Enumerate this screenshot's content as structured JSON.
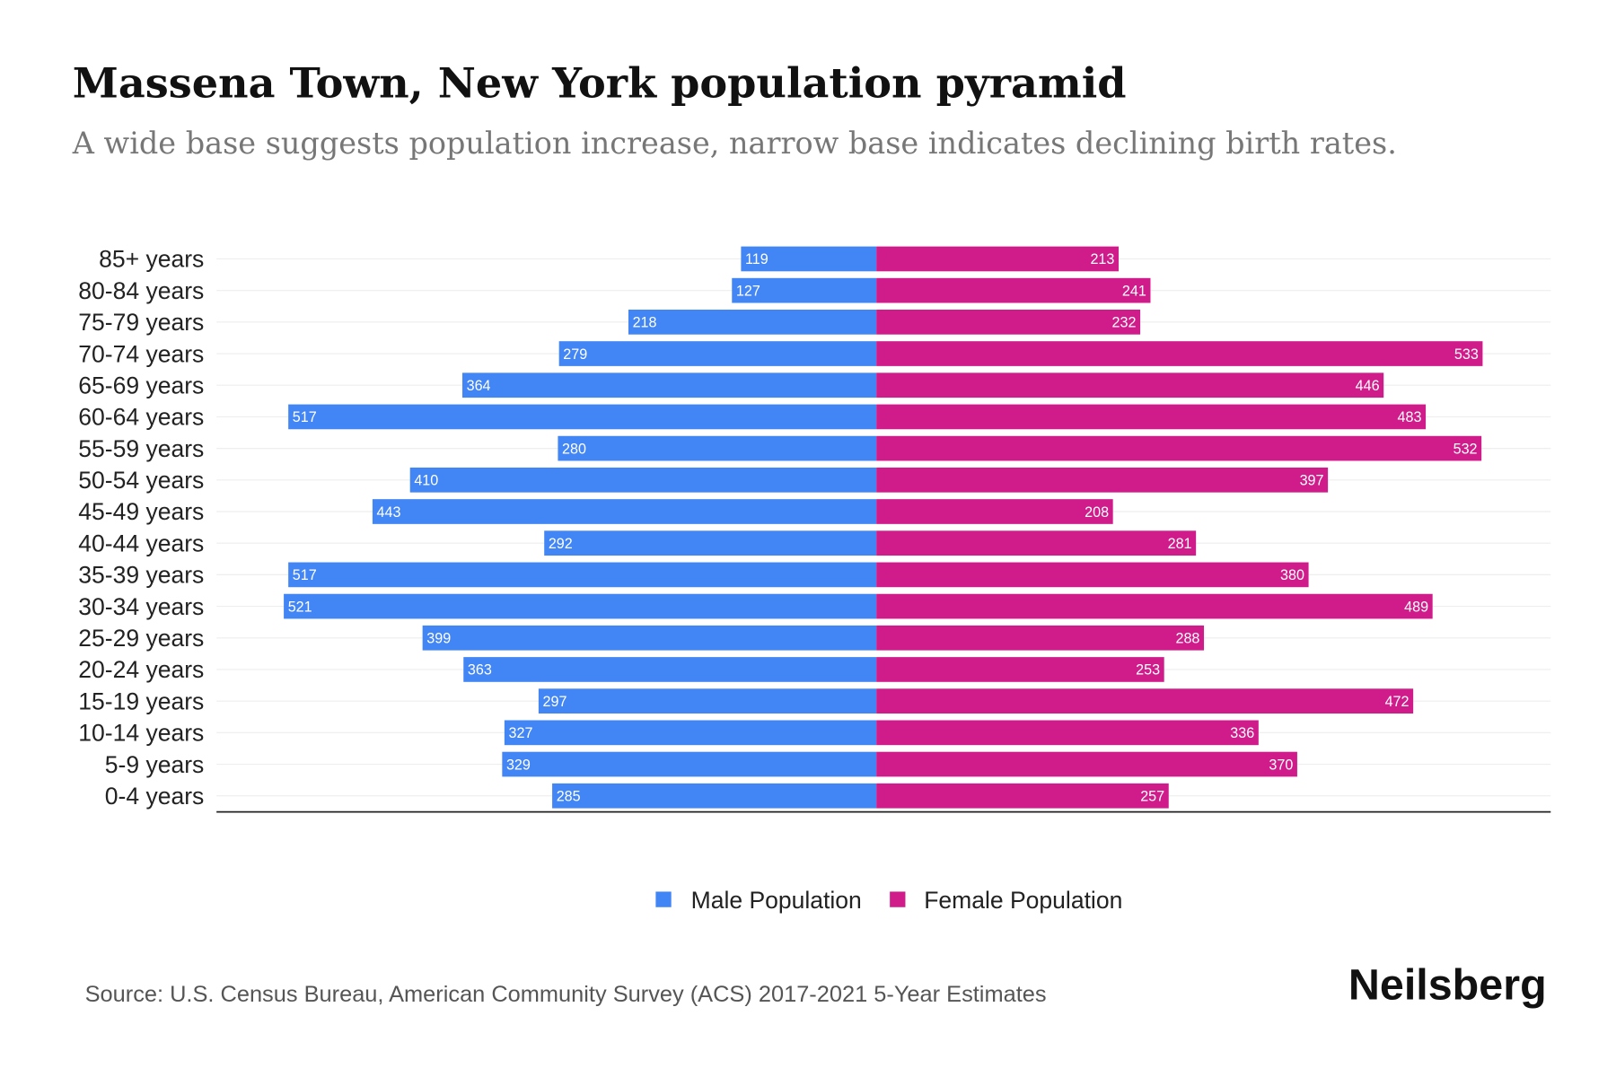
{
  "chart_data": {
    "type": "bar",
    "orientation": "horizontal",
    "title": "Massena Town, New York population pyramid",
    "subtitle": "A wide base suggests population increase, narrow base indicates declining birth rates.",
    "categories": [
      "85+ years",
      "80-84 years",
      "75-79 years",
      "70-74 years",
      "65-69 years",
      "60-64 years",
      "55-59 years",
      "50-54 years",
      "45-49 years",
      "40-44 years",
      "35-39 years",
      "30-34 years",
      "25-29 years",
      "20-24 years",
      "15-19 years",
      "10-14 years",
      "5-9 years",
      "0-4 years"
    ],
    "series": [
      {
        "name": "Male Population",
        "color": "#4285f4",
        "values": [
          119,
          127,
          218,
          279,
          364,
          517,
          280,
          410,
          443,
          292,
          517,
          521,
          399,
          363,
          297,
          327,
          329,
          285
        ]
      },
      {
        "name": "Female Population",
        "color": "#d01c8b",
        "values": [
          213,
          241,
          232,
          533,
          446,
          483,
          532,
          397,
          208,
          281,
          380,
          489,
          288,
          253,
          472,
          336,
          370,
          257
        ]
      }
    ],
    "xlim": [
      -580,
      590
    ],
    "grid": true,
    "legend": "bottom-center",
    "source": "Source: U.S. Census Bureau, American Community Survey (ACS) 2017-2021 5-Year Estimates",
    "brand": "Neilsberg"
  }
}
